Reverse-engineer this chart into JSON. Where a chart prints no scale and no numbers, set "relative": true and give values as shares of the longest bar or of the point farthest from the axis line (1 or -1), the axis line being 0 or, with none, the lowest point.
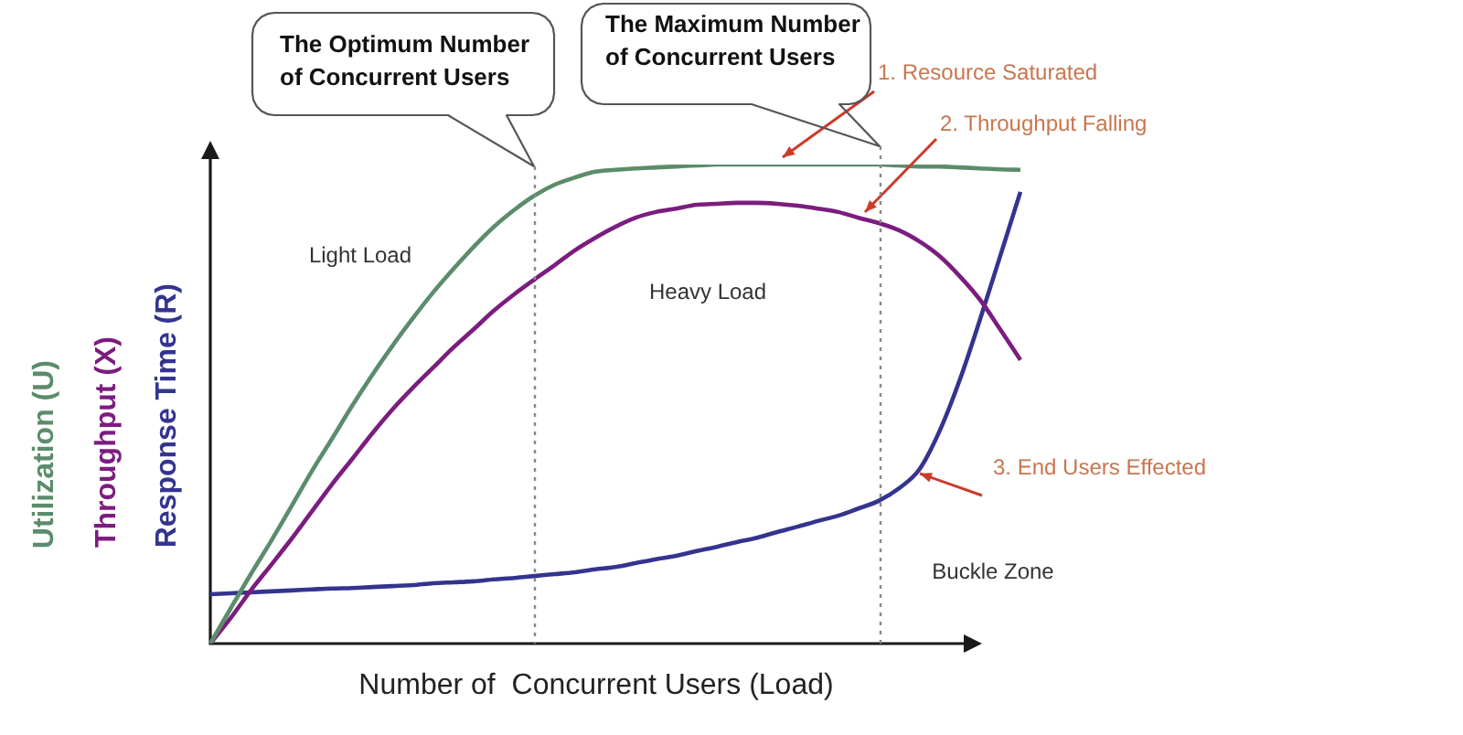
{
  "chart_data": {
    "type": "line",
    "relative": true,
    "xlabel": "Number of  Concurrent Users (Load)",
    "tick_labels": false,
    "legend": "left",
    "categories": [
      null,
      null,
      null,
      null,
      null,
      null,
      null,
      null,
      null,
      null,
      null,
      null,
      null,
      null,
      null,
      null,
      null,
      null,
      null,
      null,
      null,
      null,
      null,
      null,
      null,
      null,
      null,
      null,
      null,
      null,
      null,
      null,
      null,
      null,
      null,
      null,
      null,
      null,
      null,
      null,
      null
    ],
    "series": [
      {
        "name": "Utilization (U)",
        "color": "#5b8c6b",
        "values": [
          0,
          0.073,
          0.145,
          0.214,
          0.286,
          0.359,
          0.427,
          0.496,
          0.561,
          0.622,
          0.679,
          0.733,
          0.782,
          0.828,
          0.87,
          0.905,
          0.935,
          0.958,
          0.973,
          0.985,
          0.989,
          0.992,
          0.994,
          0.996,
          0.998,
          1,
          1,
          1,
          1,
          1,
          1,
          1,
          1,
          1,
          0.998,
          0.996,
          0.996,
          0.994,
          0.992,
          0.99,
          0.989
        ]
      },
      {
        "name": "Throughput (X)",
        "color": "#7b1d7e",
        "values": [
          0,
          0.053,
          0.111,
          0.164,
          0.218,
          0.275,
          0.332,
          0.385,
          0.439,
          0.489,
          0.534,
          0.576,
          0.618,
          0.656,
          0.695,
          0.729,
          0.76,
          0.79,
          0.821,
          0.847,
          0.87,
          0.889,
          0.901,
          0.908,
          0.916,
          0.918,
          0.92,
          0.92,
          0.918,
          0.914,
          0.908,
          0.901,
          0.889,
          0.878,
          0.863,
          0.84,
          0.809,
          0.767,
          0.718,
          0.656,
          0.592
        ]
      },
      {
        "name": "Response Time (R)",
        "color": "#34348f",
        "values": [
          0.103,
          0.105,
          0.107,
          0.109,
          0.111,
          0.113,
          0.115,
          0.116,
          0.118,
          0.12,
          0.122,
          0.126,
          0.128,
          0.13,
          0.134,
          0.137,
          0.141,
          0.145,
          0.149,
          0.155,
          0.16,
          0.168,
          0.176,
          0.183,
          0.193,
          0.202,
          0.212,
          0.221,
          0.233,
          0.244,
          0.256,
          0.267,
          0.282,
          0.298,
          0.324,
          0.363,
          0.443,
          0.55,
          0.676,
          0.809,
          0.943
        ]
      }
    ],
    "annotations": [
      "The Optimum Number of Concurrent Users",
      "The Maximum Number of Concurrent Users",
      "Light Load",
      "Heavy Load",
      "Buckle Zone",
      "1. Resource Saturated",
      "2. Throughput Falling",
      "3. End Users Effected"
    ]
  }
}
